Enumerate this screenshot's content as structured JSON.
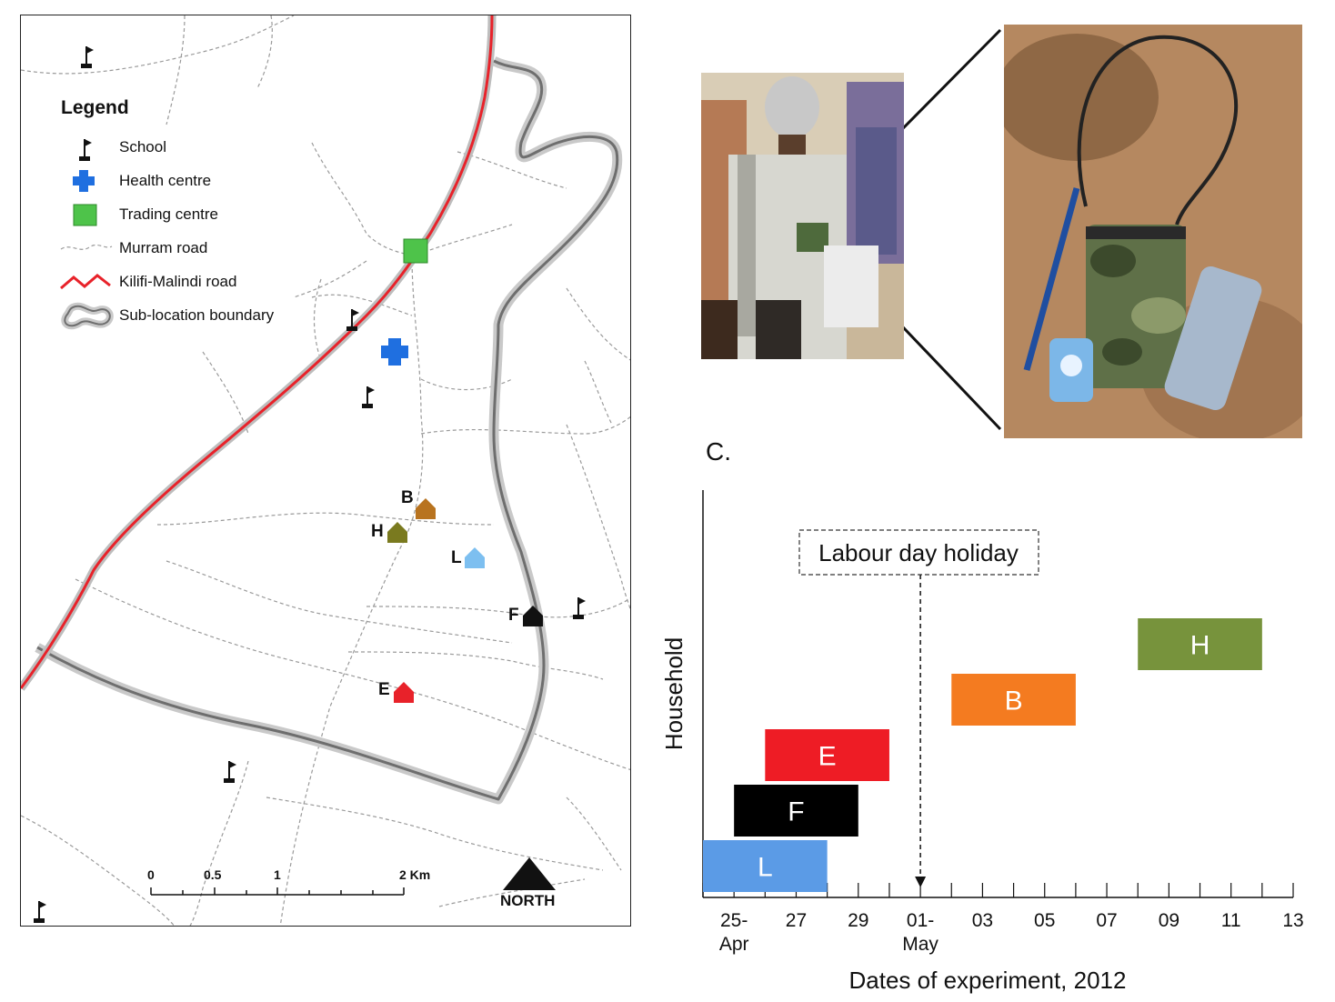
{
  "map": {
    "legend_title": "Legend",
    "legend_items": [
      {
        "label": "School",
        "icon": "school-flag-icon"
      },
      {
        "label": "Health centre",
        "icon": "health-cross-icon",
        "color": "#1f6fe0"
      },
      {
        "label": "Trading centre",
        "icon": "trading-square-icon",
        "color": "#4ec34a"
      },
      {
        "label": "Murram road",
        "icon": "murram-road-icon"
      },
      {
        "label": "Kilifi-Malindi road",
        "icon": "main-road-icon",
        "color": "#e8222a"
      },
      {
        "label": "Sub-location boundary",
        "icon": "boundary-icon"
      }
    ],
    "households": [
      {
        "id": "B",
        "color": "#b8731f"
      },
      {
        "id": "H",
        "color": "#7a7a1f"
      },
      {
        "id": "L",
        "color": "#7dbff0"
      },
      {
        "id": "F",
        "color": "#111111"
      },
      {
        "id": "E",
        "color": "#e8222a"
      }
    ],
    "scale_ticks": [
      "0",
      "0.5",
      "1",
      "2 Km"
    ],
    "north_label": "NORTH"
  },
  "panel_label": "C.",
  "chart_data": {
    "type": "bar",
    "orientation": "horizontal-gantt",
    "xlabel": "Dates of experiment, 2012",
    "ylabel": "Household",
    "xlim": [
      "2012-04-24",
      "2012-05-13"
    ],
    "x_tick_labels": [
      {
        "date": "2012-04-25",
        "label": "25-",
        "sublabel": "Apr"
      },
      {
        "date": "2012-04-27",
        "label": "27"
      },
      {
        "date": "2012-04-29",
        "label": "29"
      },
      {
        "date": "2012-05-01",
        "label": "01-",
        "sublabel": "May"
      },
      {
        "date": "2012-05-03",
        "label": "03"
      },
      {
        "date": "2012-05-05",
        "label": "05"
      },
      {
        "date": "2012-05-07",
        "label": "07"
      },
      {
        "date": "2012-05-09",
        "label": "09"
      },
      {
        "date": "2012-05-11",
        "label": "11"
      },
      {
        "date": "2012-05-13",
        "label": "13"
      }
    ],
    "bars": [
      {
        "household": "L",
        "start": "2012-04-24",
        "end": "2012-04-28",
        "color": "#5b9be6"
      },
      {
        "household": "F",
        "start": "2012-04-25",
        "end": "2012-04-29",
        "color": "#000000"
      },
      {
        "household": "E",
        "start": "2012-04-26",
        "end": "2012-04-30",
        "color": "#ee1c25"
      },
      {
        "household": "B",
        "start": "2012-05-02",
        "end": "2012-05-06",
        "color": "#f47b20"
      },
      {
        "household": "H",
        "start": "2012-05-08",
        "end": "2012-05-12",
        "color": "#77933c"
      }
    ],
    "annotation": {
      "text": "Labour day holiday",
      "date": "2012-05-01"
    }
  }
}
